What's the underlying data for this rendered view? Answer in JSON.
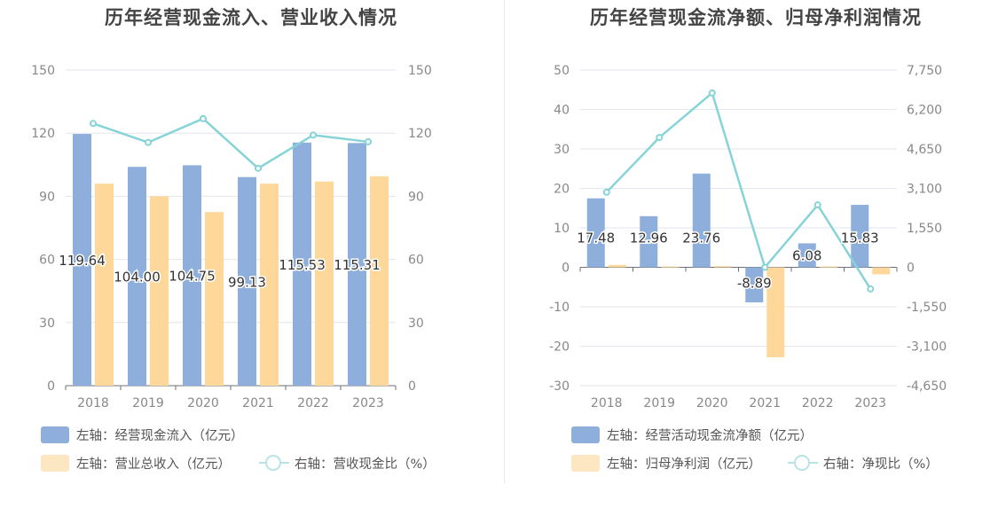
{
  "colors": {
    "bar_primary": "#8eaedb",
    "bar_secondary": "#fed89b",
    "line": "#86d3d8",
    "grid": "#e3e6ee",
    "tick_text": "#888888",
    "label_text": "#333333"
  },
  "chart_data": [
    {
      "type": "bar",
      "title": "历年经营现金流入、营业收入情况",
      "categories": [
        "2018",
        "2019",
        "2020",
        "2021",
        "2022",
        "2023"
      ],
      "y_left": {
        "ticks": [
          "0",
          "30",
          "60",
          "90",
          "120",
          "150"
        ],
        "ylim": [
          0,
          150
        ]
      },
      "y_right": {
        "ticks": [
          "0",
          "30",
          "60",
          "90",
          "120",
          "150"
        ],
        "ylim": [
          0,
          150
        ]
      },
      "series": [
        {
          "name": "左轴：经营现金流入（亿元）",
          "kind": "bar",
          "axis": "left",
          "values": [
            119.64,
            104.0,
            104.75,
            99.13,
            115.53,
            115.31
          ],
          "labels": [
            "119.64",
            "104.00",
            "104.75",
            "99.13",
            "115.53",
            "115.31"
          ]
        },
        {
          "name": "左轴：营业总收入（亿元）",
          "kind": "bar",
          "axis": "left",
          "values": [
            96,
            90,
            82.5,
            96,
            97,
            99.5
          ]
        },
        {
          "name": "右轴：营收现金比（%）",
          "kind": "line",
          "axis": "right",
          "values": [
            124.6,
            115.6,
            126.9,
            103.3,
            119.1,
            115.9
          ]
        }
      ]
    },
    {
      "type": "bar",
      "title": "历年经营现金流净额、归母净利润情况",
      "categories": [
        "2018",
        "2019",
        "2020",
        "2021",
        "2022",
        "2023"
      ],
      "y_left": {
        "ticks": [
          "-30",
          "-20",
          "-10",
          "0",
          "10",
          "20",
          "30",
          "40",
          "50"
        ],
        "ylim": [
          -30,
          50
        ]
      },
      "y_right": {
        "ticks": [
          "-4,650",
          "-3,100",
          "-1,550",
          "0",
          "1,550",
          "3,100",
          "4,650",
          "6,200",
          "7,750"
        ],
        "ylim": [
          -4650,
          7750
        ]
      },
      "series": [
        {
          "name": "左轴：经营活动现金流净额（亿元）",
          "kind": "bar",
          "axis": "left",
          "values": [
            17.48,
            12.96,
            23.76,
            -8.89,
            6.08,
            15.83
          ],
          "labels": [
            "17.48",
            "12.96",
            "23.76",
            "-8.89",
            "6.08",
            "15.83"
          ]
        },
        {
          "name": "左轴：归母净利润（亿元）",
          "kind": "bar",
          "axis": "left",
          "values": [
            0.6,
            0.2,
            0.3,
            -22.8,
            0.2,
            -1.8
          ]
        },
        {
          "name": "右轴：净现比（%）",
          "kind": "line",
          "axis": "right",
          "values": [
            2950,
            5100,
            6850,
            0,
            2450,
            -850
          ]
        }
      ]
    }
  ]
}
